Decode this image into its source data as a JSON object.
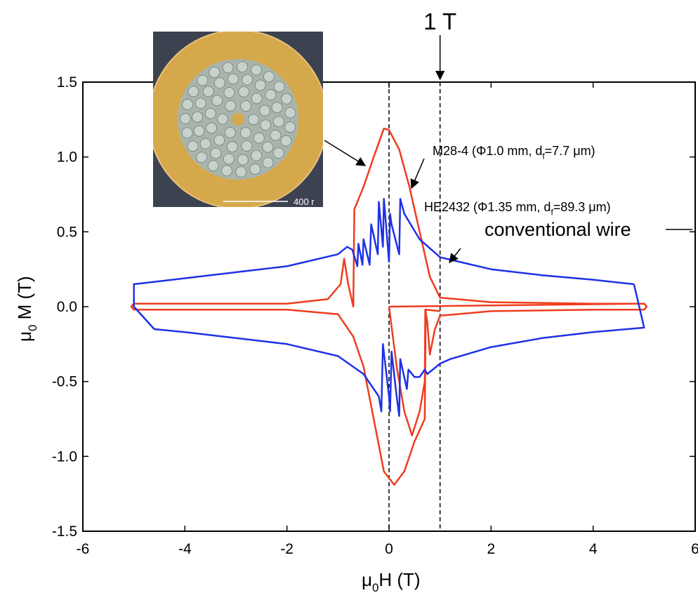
{
  "chart_data": {
    "type": "line",
    "xlabel": [
      "μ",
      "0",
      "H (T)"
    ],
    "ylabel": [
      "μ",
      "0",
      " M (T)"
    ],
    "xlim": [
      -6,
      6
    ],
    "ylim": [
      -1.5,
      1.5
    ],
    "xticks": [
      -6,
      -4,
      -2,
      0,
      2,
      4,
      6
    ],
    "yticks": [
      -1.5,
      {
        "value": -1,
        "label": "-1.0"
      },
      -0.5,
      {
        "value": 0,
        "label": "0.0"
      },
      0.5,
      {
        "value": 1,
        "label": "1.0"
      },
      1.5
    ],
    "vlines": [
      0,
      1
    ],
    "field_marker": {
      "x": 1,
      "label": "1 T"
    },
    "annotation": "conventional wire",
    "inset_scale_label": "400 r",
    "series": [
      {
        "name": [
          "M28-4 (Φ1.0 mm, d",
          "f",
          "=7.7 μm)"
        ],
        "color": "#f03c1e",
        "x": [
          0,
          0.15,
          0.3,
          0.45,
          0.6,
          0.7,
          0.71,
          0.75,
          0.8,
          0.9,
          1.0,
          2,
          4,
          5,
          5.05,
          5,
          4,
          2,
          1,
          0.8,
          0.6,
          0.4,
          0.2,
          0,
          -0.1,
          -0.3,
          -0.5,
          -0.68,
          -0.7,
          -0.8,
          -0.88,
          -0.95,
          -1.2,
          -2,
          -4,
          -5,
          -5.05,
          -5,
          -4,
          -2,
          -1,
          -0.7,
          -0.5,
          -0.3,
          -0.1,
          0.1,
          0.3,
          0.5,
          0.7,
          0.72,
          1,
          null,
          0,
          5
        ],
        "values": [
          0,
          -0.4,
          -0.7,
          -0.86,
          -0.7,
          -0.5,
          -0.02,
          -0.1,
          -0.32,
          -0.15,
          -0.06,
          -0.03,
          -0.02,
          -0.02,
          0,
          0.02,
          0.02,
          0.03,
          0.06,
          0.2,
          0.5,
          0.8,
          1.05,
          1.18,
          1.19,
          1.0,
          0.8,
          0.65,
          0,
          0.15,
          0.32,
          0.15,
          0.05,
          0.02,
          0.02,
          0.02,
          0,
          -0.02,
          -0.02,
          -0.02,
          -0.05,
          -0.2,
          -0.4,
          -0.75,
          -1.1,
          -1.19,
          -1.1,
          -0.9,
          -0.75,
          -0.02,
          -0.03,
          null,
          0,
          0.02
        ]
      },
      {
        "name": [
          "HE2432 (Φ1.35 mm, d",
          "f",
          "=89.3 μm)"
        ],
        "color": "#1e32e6",
        "x": [
          4.8,
          4,
          3,
          2,
          1,
          0.6,
          0.3,
          0.22,
          0.2,
          0.05,
          0.02,
          0,
          -0.1,
          -0.12,
          -0.2,
          -0.22,
          -0.35,
          -0.38,
          -0.5,
          -0.52,
          -0.6,
          -0.62,
          -0.72,
          -0.82,
          -1,
          -2,
          -4,
          -5,
          -5,
          -4.6,
          -4,
          -2,
          -1,
          -0.5,
          -0.2,
          -0.15,
          -0.12,
          0,
          0.02,
          0.05,
          0.15,
          0.2,
          0.22,
          0.35,
          0.38,
          0.5,
          0.6,
          0.7,
          0.75,
          1,
          1.2,
          2,
          3,
          4,
          5,
          4.8
        ],
        "values": [
          0.15,
          0.18,
          0.21,
          0.25,
          0.33,
          0.45,
          0.62,
          0.72,
          0.35,
          0.55,
          0.62,
          0.3,
          0.72,
          0.4,
          0.7,
          0.35,
          0.55,
          0.28,
          0.45,
          0.28,
          0.42,
          0.27,
          0.38,
          0.4,
          0.35,
          0.27,
          0.19,
          0.15,
          0,
          -0.15,
          -0.17,
          -0.25,
          -0.33,
          -0.45,
          -0.6,
          -0.7,
          -0.25,
          -0.6,
          -0.7,
          -0.3,
          -0.6,
          -0.73,
          -0.35,
          -0.55,
          -0.42,
          -0.47,
          -0.47,
          -0.42,
          -0.45,
          -0.38,
          -0.35,
          -0.27,
          -0.21,
          -0.17,
          -0.14,
          0.15
        ]
      }
    ]
  }
}
